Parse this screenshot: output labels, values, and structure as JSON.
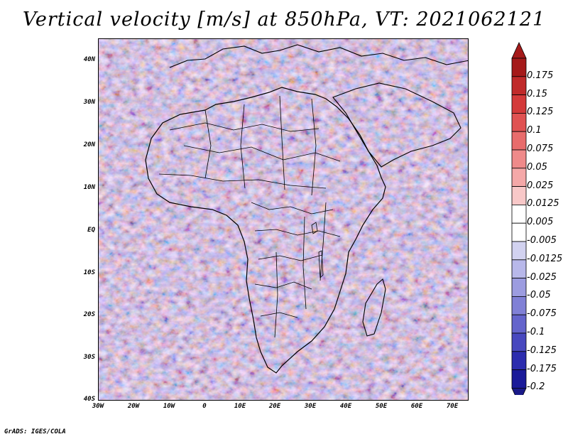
{
  "title": "Vertical velocity [m/s] at 850hPa, VT: 2021062121",
  "map": {
    "lat_labels": [
      "40N",
      "30N",
      "20N",
      "10N",
      "EQ",
      "10S",
      "20S",
      "30S",
      "40S"
    ],
    "lon_labels": [
      "30W",
      "20W",
      "10W",
      "0",
      "10E",
      "20E",
      "30E",
      "40E",
      "50E",
      "60E",
      "70E"
    ]
  },
  "colorbar": {
    "levels": [
      "0.175",
      "0.15",
      "0.125",
      "0.1",
      "0.075",
      "0.05",
      "0.025",
      "0.0125",
      "0.005",
      "-0.005",
      "-0.0125",
      "-0.025",
      "-0.05",
      "-0.075",
      "-0.1",
      "-0.125",
      "-0.175",
      "-0.2"
    ],
    "colors": [
      "#a51a1a",
      "#c02a2a",
      "#d43a3a",
      "#e05252",
      "#e86c6c",
      "#ef8a8a",
      "#f4a8a8",
      "#f8c8c8",
      "#ffffff",
      "#ffffff",
      "#d2d2f0",
      "#b8b8ea",
      "#9c9ce0",
      "#8080d6",
      "#6464cc",
      "#4848bf",
      "#2c2cae",
      "#1a1a99"
    ]
  },
  "footer": "GrADS: IGES/COLA",
  "palette": {
    "background": "#ffffff",
    "positive": "#d84848",
    "negative": "#6a6ad8",
    "border": "#000000"
  }
}
